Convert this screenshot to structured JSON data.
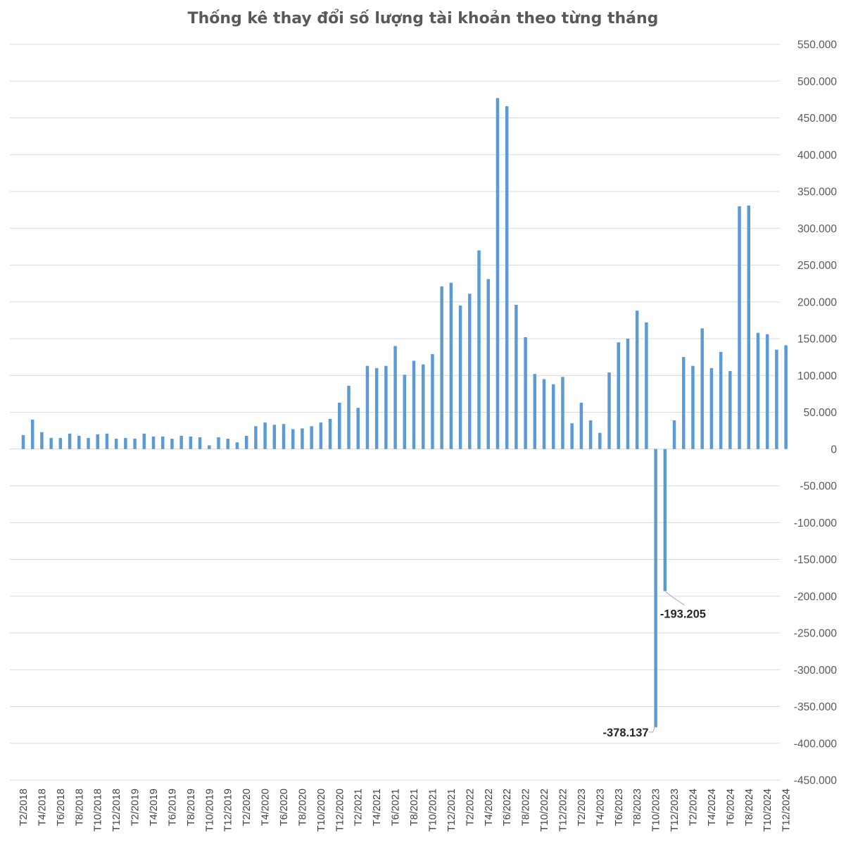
{
  "chart_data": {
    "type": "bar",
    "title": "Thống kê thay đổi số lượng tài khoản theo từng tháng",
    "xlabel": "",
    "ylabel": "",
    "ylim": [
      -450000,
      550000
    ],
    "ytick_step": 50000,
    "grid": true,
    "legend": "none",
    "bar_color": "#5b9bd5",
    "categories": [
      "T2/2018",
      "T3/2018",
      "T4/2018",
      "T5/2018",
      "T6/2018",
      "T7/2018",
      "T8/2018",
      "T9/2018",
      "T10/2018",
      "T11/2018",
      "T12/2018",
      "T1/2019",
      "T2/2019",
      "T3/2019",
      "T4/2019",
      "T5/2019",
      "T6/2019",
      "T7/2019",
      "T8/2019",
      "T9/2019",
      "T10/2019",
      "T11/2019",
      "T12/2019",
      "T1/2020",
      "T2/2020",
      "T3/2020",
      "T4/2020",
      "T5/2020",
      "T6/2020",
      "T7/2020",
      "T8/2020",
      "T9/2020",
      "T10/2020",
      "T11/2020",
      "T12/2020",
      "T1/2021",
      "T2/2021",
      "T3/2021",
      "T4/2021",
      "T5/2021",
      "T6/2021",
      "T7/2021",
      "T8/2021",
      "T9/2021",
      "T10/2021",
      "T11/2021",
      "T12/2021",
      "T1/2022",
      "T2/2022",
      "T3/2022",
      "T4/2022",
      "T5/2022",
      "T6/2022",
      "T7/2022",
      "T8/2022",
      "T9/2022",
      "T10/2022",
      "T11/2022",
      "T12/2022",
      "T1/2023",
      "T2/2023",
      "T3/2023",
      "T4/2023",
      "T5/2023",
      "T6/2023",
      "T7/2023",
      "T8/2023",
      "T9/2023",
      "T10/2023",
      "T11/2023",
      "T12/2023",
      "T1/2024",
      "T2/2024",
      "T3/2024",
      "T4/2024",
      "T5/2024",
      "T6/2024",
      "T7/2024",
      "T8/2024",
      "T9/2024",
      "T10/2024",
      "T11/2024",
      "T12/2024"
    ],
    "tick_labels": [
      "T2/2018",
      "T4/2018",
      "T6/2018",
      "T8/2018",
      "T10/2018",
      "T12/2018",
      "T2/2019",
      "T4/2019",
      "T6/2019",
      "T8/2019",
      "T10/2019",
      "T12/2019",
      "T2/2020",
      "T4/2020",
      "T6/2020",
      "T8/2020",
      "T10/2020",
      "T12/2020",
      "T2/2021",
      "T4/2021",
      "T6/2021",
      "T8/2021",
      "T10/2021",
      "T12/2021",
      "T2/2022",
      "T4/2022",
      "T6/2022",
      "T8/2022",
      "T10/2022",
      "T12/2022",
      "T2/2023",
      "T4/2023",
      "T6/2023",
      "T8/2023",
      "T10/2023",
      "T12/2023",
      "T2/2024",
      "T4/2024",
      "T6/2024",
      "T8/2024",
      "T10/2024",
      "T12/2024"
    ],
    "values": [
      19000,
      40000,
      23000,
      15000,
      15000,
      21000,
      18000,
      15000,
      20000,
      21000,
      14000,
      15000,
      14000,
      21000,
      17000,
      17000,
      14000,
      18000,
      17000,
      16000,
      5000,
      16000,
      14000,
      9000,
      18000,
      31000,
      36000,
      33000,
      34000,
      27000,
      28000,
      31000,
      36000,
      41000,
      63000,
      86000,
      56000,
      113000,
      110000,
      113000,
      140000,
      101000,
      120000,
      115000,
      129000,
      221000,
      226000,
      195000,
      211000,
      270000,
      231000,
      477000,
      466000,
      196000,
      152000,
      102000,
      95000,
      88000,
      98000,
      35000,
      63000,
      39000,
      22000,
      104000,
      145000,
      150000,
      188000,
      172000,
      -378137,
      -193205,
      39000,
      125000,
      113000,
      164000,
      110000,
      132000,
      106000,
      330000,
      331000,
      158000,
      156000,
      135000,
      141000
    ],
    "data_labels": [
      {
        "category": "T10/2023",
        "value": -378137,
        "text": "-378.137"
      },
      {
        "category": "T11/2023",
        "value": -193205,
        "text": "-193.205"
      }
    ],
    "ytick_labels": [
      "550.000",
      "500.000",
      "450.000",
      "400.000",
      "350.000",
      "300.000",
      "250.000",
      "200.000",
      "150.000",
      "100.000",
      "50.000",
      "0",
      "-50.000",
      "-100.000",
      "-150.000",
      "-200.000",
      "-250.000",
      "-300.000",
      "-350.000",
      "-400.000",
      "-450.000"
    ]
  }
}
